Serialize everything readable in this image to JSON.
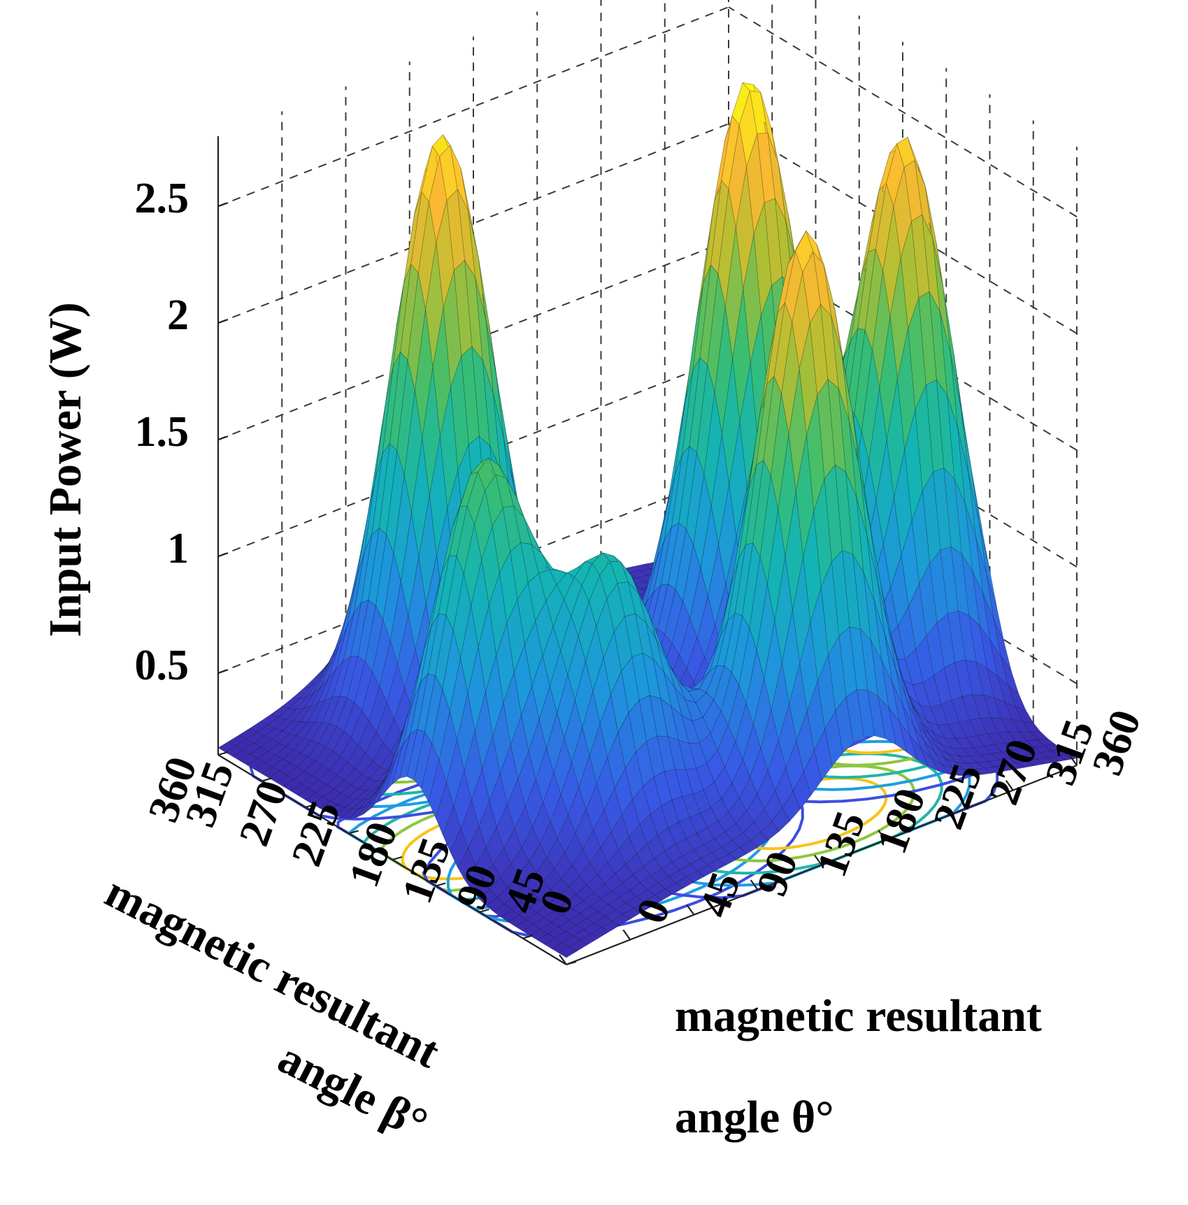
{
  "chart_data": {
    "type": "surface3d",
    "zlabel": "Input Power (W)",
    "xlabel_lines": [
      "magnetic resultant",
      "angle θ°"
    ],
    "ylabel_lines": [
      "magnetic resultant",
      "angle β°"
    ],
    "x_var": "θ",
    "y_var": "β",
    "x_ticks": [
      "0",
      "45",
      "90",
      "135",
      "180",
      "225",
      "270",
      "315",
      "360"
    ],
    "y_ticks": [
      "0",
      "45",
      "90",
      "135",
      "180",
      "225",
      "270",
      "315",
      "360"
    ],
    "z_ticks": [
      "0.5",
      "1",
      "1.5",
      "2",
      "2.5"
    ],
    "x_range": [
      0,
      360
    ],
    "y_range": [
      0,
      360
    ],
    "z_range": [
      0.15,
      2.8
    ],
    "grid": true,
    "colormap": "parula",
    "surface_peaks": [
      {
        "theta": 50,
        "beta": 160,
        "power": 1.7
      },
      {
        "theta": 100,
        "beta": 100,
        "power": 1.25
      },
      {
        "theta": 210,
        "beta": 60,
        "power": 2.5
      },
      {
        "theta": 110,
        "beta": 290,
        "power": 2.6
      },
      {
        "theta": 265,
        "beta": 200,
        "power": 2.7
      },
      {
        "theta": 320,
        "beta": 120,
        "power": 2.58
      }
    ],
    "contour_levels": [
      0.3,
      0.5,
      0.8,
      1.2,
      1.6
    ],
    "contour_colors": [
      "#3d4de0",
      "#1f9de0",
      "#22b5a6",
      "#8cc63f",
      "#f5c518"
    ]
  }
}
